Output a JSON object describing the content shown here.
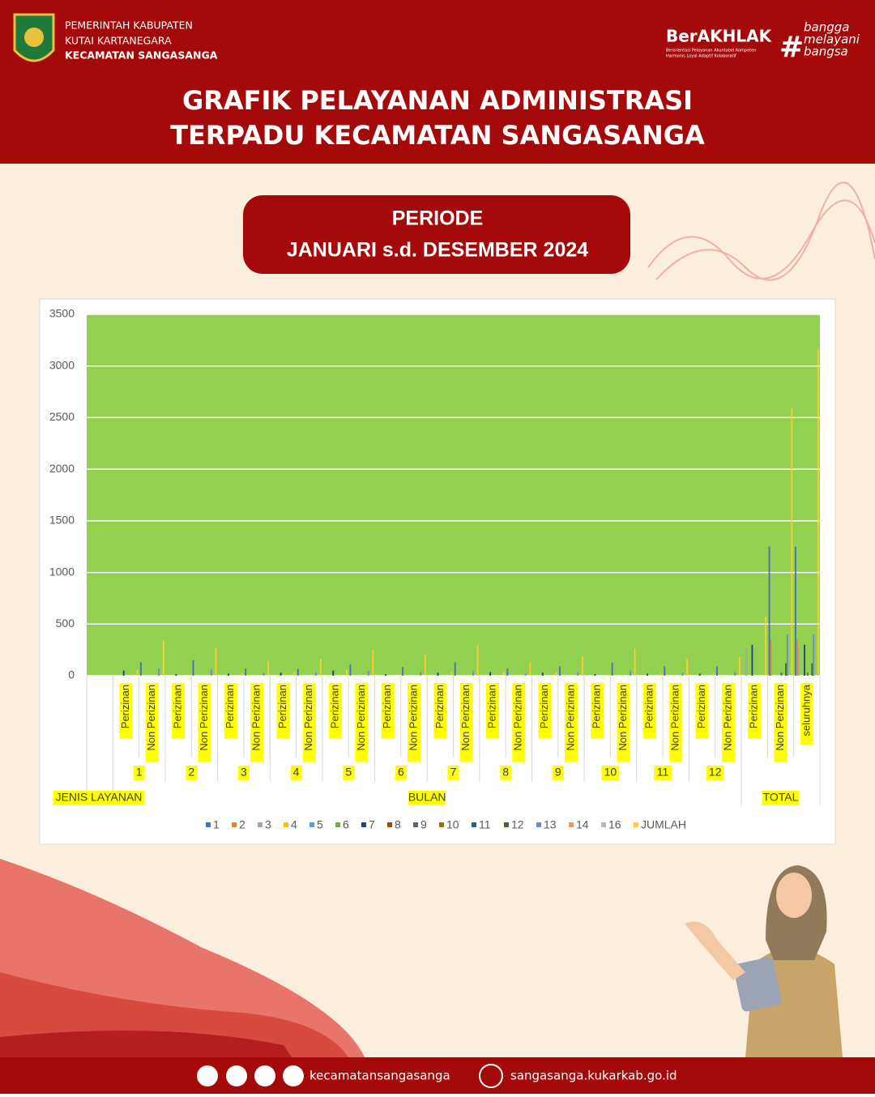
{
  "header": {
    "org": [
      "PEMERINTAH KABUPATEN",
      "KUTAI KARTANEGARA",
      "KECAMATAN SANGASANGA"
    ],
    "brand": "BerAKHLAK",
    "brand_tagline": [
      "Berorientasi Pelayanan Akuntabel Kompeten",
      "Harmonis Loyal Adaptif Kolaboratif"
    ],
    "hashtag": [
      "bangga",
      "melayani",
      "bangsa"
    ],
    "title": [
      "GRAFIK PELAYANAN ADMINISTRASI",
      "TERPADU KECAMATAN SANGASANGA"
    ]
  },
  "period": [
    "PERIODE",
    "JANUARI s.d. DESEMBER 2024"
  ],
  "chart_data": {
    "type": "bar",
    "categories": [
      null,
      "Perizinan",
      "Non Perizinan",
      "Perizinan",
      "Non Perizinan",
      "Perizinan",
      "Non Perizinan",
      "Perizinan",
      "Non Perizinan",
      "Perizinan",
      "Non Perizinan",
      "Perizinan",
      "Non Perizinan",
      "Perizinan",
      "Non Perizinan",
      "Perizinan",
      "Non Perizinan",
      "Perizinan",
      "Non Perizinan",
      "Perizinan",
      "Non Perizinan",
      "Perizinan",
      "Non Perizinan",
      "Perizinan",
      "Non Perizinan",
      "Perizinan",
      "Non Perizinan",
      "seluruhnya"
    ],
    "months": [
      "1",
      "2",
      "3",
      "4",
      "5",
      "6",
      "7",
      "8",
      "9",
      "10",
      "11",
      "12"
    ],
    "groups": [
      "JENIS LAYANAN",
      "BULAN",
      "TOTAL"
    ],
    "ylim": [
      0,
      3500
    ],
    "yticks": [
      0,
      500,
      1000,
      1500,
      2000,
      2500,
      3000,
      3500
    ],
    "grid": true,
    "plot_background": "#92d050",
    "legend": "bottom",
    "series": [
      {
        "name": "1",
        "color": "#4472c4",
        "values": [
          null,
          0,
          130,
          0,
          150,
          0,
          70,
          0,
          65,
          0,
          110,
          0,
          85,
          0,
          130,
          0,
          70,
          0,
          90,
          0,
          125,
          0,
          90,
          0,
          90,
          0,
          1250,
          1250
        ]
      },
      {
        "name": "2",
        "color": "#ed7d31",
        "values": [
          null,
          0,
          0,
          0,
          0,
          0,
          0,
          0,
          0,
          0,
          0,
          0,
          0,
          0,
          0,
          0,
          0,
          0,
          0,
          0,
          0,
          0,
          0,
          0,
          0,
          0,
          350,
          350
        ]
      },
      {
        "name": "3",
        "color": "#a5a5a5",
        "values": [
          null,
          0,
          0,
          0,
          0,
          0,
          0,
          0,
          0,
          0,
          0,
          0,
          0,
          0,
          0,
          0,
          0,
          0,
          0,
          0,
          0,
          0,
          0,
          0,
          0,
          270,
          0,
          270
        ]
      },
      {
        "name": "4",
        "color": "#ffc000",
        "values": [
          null,
          0,
          0,
          0,
          0,
          0,
          0,
          0,
          0,
          0,
          0,
          0,
          0,
          0,
          0,
          0,
          0,
          0,
          0,
          0,
          0,
          0,
          0,
          0,
          0,
          0,
          0,
          0
        ]
      },
      {
        "name": "5",
        "color": "#5b9bd5",
        "values": [
          null,
          0,
          0,
          0,
          0,
          0,
          0,
          0,
          0,
          0,
          0,
          0,
          0,
          0,
          0,
          0,
          0,
          0,
          0,
          0,
          0,
          0,
          0,
          0,
          0,
          0,
          0,
          0
        ]
      },
      {
        "name": "6",
        "color": "#70ad47",
        "values": [
          null,
          0,
          0,
          0,
          0,
          0,
          0,
          0,
          0,
          0,
          0,
          0,
          0,
          0,
          0,
          0,
          0,
          0,
          0,
          0,
          0,
          0,
          0,
          0,
          0,
          0,
          0,
          0
        ]
      },
      {
        "name": "7",
        "color": "#264478",
        "values": [
          null,
          50,
          0,
          15,
          0,
          20,
          0,
          30,
          0,
          50,
          0,
          15,
          0,
          30,
          0,
          35,
          0,
          30,
          0,
          15,
          0,
          20,
          0,
          20,
          0,
          300,
          0,
          300
        ]
      },
      {
        "name": "8",
        "color": "#9e480e",
        "values": [
          null,
          0,
          0,
          0,
          0,
          0,
          0,
          0,
          0,
          0,
          0,
          0,
          0,
          0,
          0,
          0,
          0,
          0,
          0,
          0,
          0,
          0,
          0,
          0,
          0,
          0,
          0,
          0
        ]
      },
      {
        "name": "9",
        "color": "#636363",
        "values": [
          null,
          0,
          0,
          0,
          0,
          0,
          0,
          0,
          0,
          0,
          0,
          0,
          0,
          0,
          0,
          0,
          0,
          0,
          0,
          0,
          0,
          0,
          0,
          0,
          0,
          0,
          30,
          30
        ]
      },
      {
        "name": "10",
        "color": "#997300",
        "values": [
          null,
          0,
          0,
          0,
          0,
          0,
          0,
          0,
          0,
          0,
          0,
          0,
          0,
          0,
          0,
          0,
          0,
          0,
          0,
          0,
          0,
          0,
          0,
          0,
          0,
          0,
          0,
          0
        ]
      },
      {
        "name": "11",
        "color": "#255e91",
        "values": [
          null,
          0,
          0,
          0,
          0,
          0,
          0,
          0,
          0,
          0,
          0,
          0,
          0,
          0,
          0,
          0,
          0,
          0,
          0,
          0,
          0,
          0,
          0,
          0,
          0,
          0,
          0,
          0
        ]
      },
      {
        "name": "12",
        "color": "#43682b",
        "values": [
          null,
          0,
          0,
          0,
          0,
          0,
          0,
          0,
          0,
          0,
          0,
          0,
          0,
          0,
          0,
          0,
          0,
          0,
          0,
          0,
          0,
          0,
          0,
          0,
          0,
          0,
          120,
          120
        ]
      },
      {
        "name": "13",
        "color": "#698ed0",
        "values": [
          null,
          0,
          70,
          0,
          60,
          0,
          25,
          0,
          30,
          0,
          50,
          0,
          40,
          0,
          45,
          0,
          20,
          0,
          35,
          0,
          50,
          0,
          30,
          0,
          35,
          0,
          400,
          400
        ]
      },
      {
        "name": "14",
        "color": "#f1975a",
        "values": [
          null,
          0,
          0,
          0,
          0,
          0,
          0,
          0,
          0,
          0,
          0,
          0,
          0,
          0,
          0,
          0,
          0,
          0,
          0,
          0,
          0,
          0,
          0,
          0,
          0,
          0,
          0,
          0
        ]
      },
      {
        "name": "16",
        "color": "#b7b7b7",
        "values": [
          null,
          0,
          0,
          0,
          0,
          0,
          0,
          0,
          0,
          0,
          0,
          0,
          0,
          0,
          0,
          0,
          0,
          0,
          0,
          0,
          0,
          0,
          0,
          0,
          0,
          0,
          0,
          0
        ]
      },
      {
        "name": "JUMLAH",
        "color": "#ffcd33",
        "values": [
          null,
          55,
          340,
          20,
          270,
          25,
          145,
          35,
          165,
          60,
          250,
          20,
          205,
          35,
          295,
          40,
          130,
          35,
          190,
          20,
          260,
          25,
          160,
          25,
          180,
          570,
          2590,
          3160
        ]
      }
    ]
  },
  "footer": {
    "social": "kecamatansangasanga",
    "website": "sangasanga.kukarkab.go.id"
  }
}
